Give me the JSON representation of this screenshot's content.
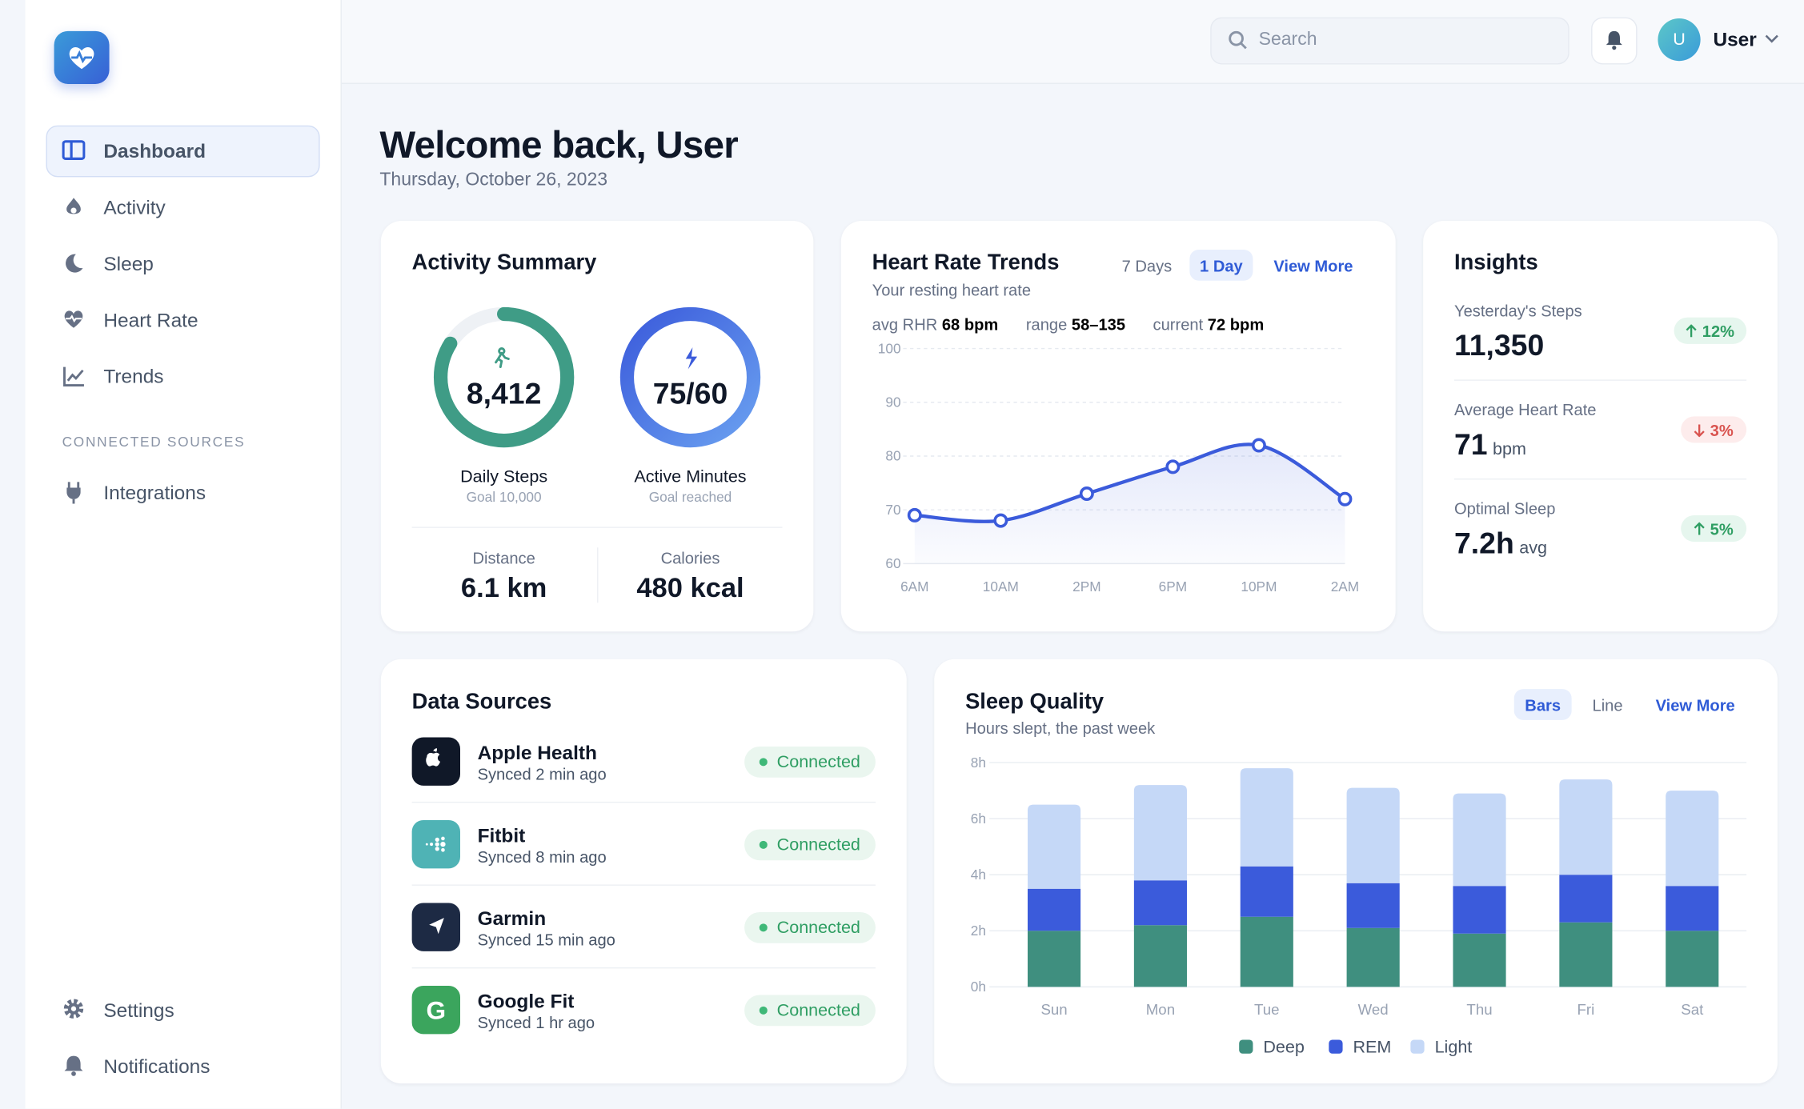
{
  "sidebar": {
    "nav": [
      "Dashboard",
      "Activity",
      "Sleep",
      "Heart Rate",
      "Trends"
    ],
    "section_label": "CONNECTED SOURCES",
    "integrations": "Integrations",
    "bottom": [
      "Settings",
      "Notifications"
    ]
  },
  "header": {
    "search_placeholder": "Search",
    "avatar": "U",
    "user": "User"
  },
  "welcome": {
    "title": "Welcome back, User",
    "date": "Thursday, October 26, 2023"
  },
  "activity_summary": {
    "title": "Activity Summary",
    "steps": "8,412",
    "steps_label": "Daily Steps",
    "steps_goal": "Goal 10,000",
    "minutes": "75/60",
    "minutes_label": "Active Minutes",
    "minutes_goal": "Goal reached",
    "distance_label": "Distance",
    "distance": "6.1 km",
    "calories_label": "Calories",
    "calories": "480 kcal"
  },
  "heart_rate_card": {
    "tabs": [
      "7 Days",
      "1 Day"
    ],
    "view_more": "View More",
    "subtitle": "Your resting heart rate",
    "stats": [
      {
        "label": "avg RHR",
        "value": "68 bpm"
      },
      {
        "label": "range",
        "value": "58–135"
      },
      {
        "label": "current",
        "value": "72 bpm"
      }
    ]
  },
  "insights": {
    "title": "Insights",
    "items": [
      {
        "label": "Yesterday's Steps",
        "value": "11,350",
        "change": "12%"
      },
      {
        "label": "Average Heart Rate",
        "value": "71",
        "unit": "bpm",
        "change": "3%"
      },
      {
        "label": "Optimal Sleep",
        "value": "7.2h",
        "unit": "avg",
        "change": "5%"
      }
    ]
  },
  "data_sources": {
    "title": "Data Sources",
    "items": [
      {
        "name": "Apple Health",
        "synced": "Synced 2 min ago",
        "status": "Connected"
      },
      {
        "name": "Fitbit",
        "synced": "Synced 8 min ago",
        "status": "Connected"
      },
      {
        "name": "Garmin",
        "synced": "Synced 15 min ago",
        "status": "Connected"
      },
      {
        "name": "Google Fit",
        "synced": "Synced 1 hr ago",
        "status": "Connected"
      }
    ]
  },
  "sleep_card": {
    "tabs": [
      "Bars",
      "Line"
    ],
    "view_more": "View More",
    "subtitle": "Hours slept, the past week"
  },
  "chart_data": [
    {
      "type": "line",
      "title": "Heart Rate Trends",
      "categories": [
        "6AM",
        "10AM",
        "2PM",
        "6PM",
        "10PM",
        "2AM"
      ],
      "values": [
        69,
        68,
        73,
        78,
        82,
        72
      ],
      "color": "#3b5bdb",
      "ylim": [
        60,
        100
      ],
      "yticks": [
        60,
        70,
        80,
        90,
        100
      ],
      "grid": true
    },
    {
      "type": "stacked_bar",
      "title": "Sleep Quality",
      "categories": [
        "Sun",
        "Mon",
        "Tue",
        "Wed",
        "Thu",
        "Fri",
        "Sat"
      ],
      "series": [
        {
          "name": "Deep",
          "color": "#3f8f7f",
          "values": [
            2.0,
            2.2,
            2.5,
            2.1,
            1.9,
            2.3,
            2.0
          ]
        },
        {
          "name": "REM",
          "color": "#3b5bdb",
          "values": [
            1.5,
            1.6,
            1.8,
            1.6,
            1.7,
            1.7,
            1.6
          ]
        },
        {
          "name": "Light",
          "color": "#c5d8f7",
          "values": [
            3.0,
            3.4,
            3.5,
            3.4,
            3.3,
            3.4,
            3.4
          ]
        }
      ],
      "ylim": [
        0,
        8
      ],
      "yticks": [
        {
          "value": 0,
          "label": "0h"
        },
        {
          "value": 2,
          "label": "2h"
        },
        {
          "value": 4,
          "label": "4h"
        },
        {
          "value": 6,
          "label": "6h"
        },
        {
          "value": 8,
          "label": "8h"
        }
      ],
      "grid": true,
      "legend": "bottom"
    }
  ]
}
